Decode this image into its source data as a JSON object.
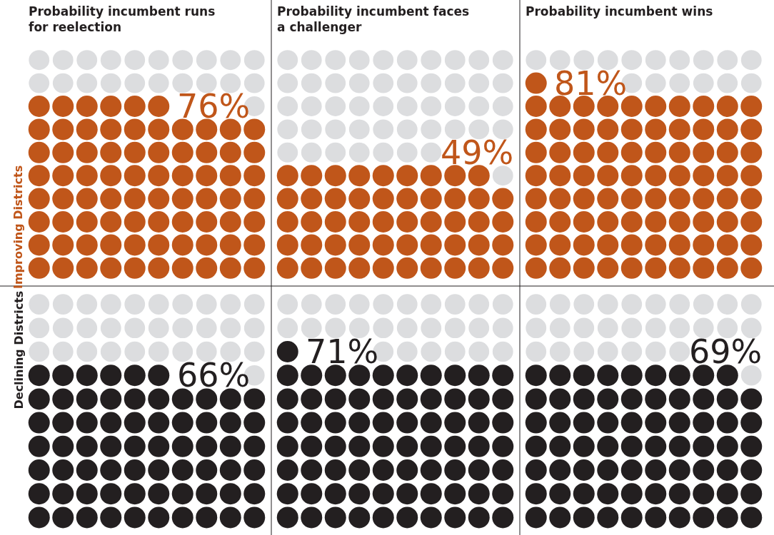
{
  "chart_data": [
    {
      "type": "other",
      "title": "Probability incumbent runs for reelection",
      "ylabel": "Improving Districts",
      "values": [
        76
      ],
      "value_labels": [
        "76%"
      ],
      "color": "#c0561a"
    },
    {
      "type": "other",
      "title": "Probability incumbent faces a challenger",
      "values": [
        49
      ],
      "value_labels": [
        "49%"
      ],
      "color": "#c0561a"
    },
    {
      "type": "other",
      "title": "Probability incumbent wins",
      "values": [
        81
      ],
      "value_labels": [
        "81%"
      ],
      "color": "#c0561a"
    },
    {
      "type": "other",
      "ylabel": "Declining Districts",
      "values": [
        66
      ],
      "value_labels": [
        "66%"
      ],
      "color": "#231f20"
    },
    {
      "type": "other",
      "values": [
        71
      ],
      "value_labels": [
        "71%"
      ],
      "color": "#231f20"
    },
    {
      "type": "other",
      "values": [
        69
      ],
      "value_labels": [
        "69%"
      ],
      "color": "#231f20"
    }
  ]
}
